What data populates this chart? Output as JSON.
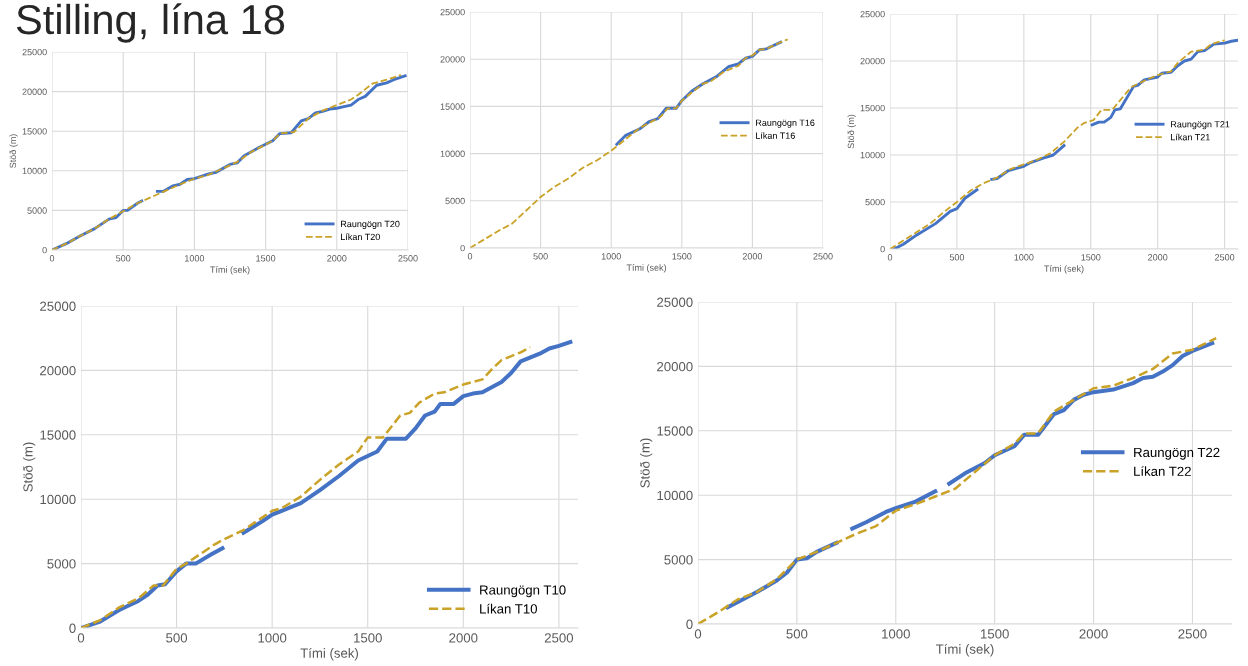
{
  "chart_data": [
    {
      "type": "line",
      "title": "Stilling, lína 18",
      "xlabel": "Tími (sek)",
      "ylabel": "Stöð (m)",
      "xlim": [
        0,
        2500
      ],
      "xticks": [
        0,
        500,
        1000,
        1500,
        2000,
        2500
      ],
      "ylim": [
        0,
        25000
      ],
      "yticks": [
        0,
        5000,
        10000,
        15000,
        20000,
        25000
      ],
      "grid": true,
      "legend": "bottom right",
      "series": [
        {
          "name": "Raungögn T20",
          "color": "#4472c4",
          "line_style": "solid",
          "x": [
            0,
            100,
            200,
            300,
            400,
            450,
            500,
            530,
            600,
            630,
            680,
            740,
            780,
            850,
            900,
            950,
            1000,
            1100,
            1150,
            1250,
            1300,
            1350,
            1450,
            1550,
            1600,
            1680,
            1750,
            1800,
            1850,
            1900,
            1950,
            2000,
            2050,
            2100,
            2150,
            2200,
            2280,
            2350,
            2400,
            2480
          ],
          "values": [
            0,
            800,
            1800,
            2700,
            3900,
            4100,
            5000,
            5000,
            5900,
            6200,
            null,
            7400,
            7400,
            8100,
            8300,
            8900,
            9000,
            9600,
            9800,
            10800,
            11000,
            11900,
            12900,
            13800,
            14700,
            14800,
            16300,
            16600,
            17300,
            17500,
            17800,
            17900,
            18100,
            18300,
            19000,
            19400,
            20800,
            21100,
            21500,
            22000
          ]
        },
        {
          "name": "Líkan T20",
          "color": "#c9a227",
          "line_style": "dashed",
          "x": [
            0,
            100,
            200,
            300,
            400,
            500,
            600,
            700,
            800,
            900,
            1000,
            1100,
            1200,
            1300,
            1400,
            1500,
            1550,
            1600,
            1700,
            1800,
            1900,
            2000,
            2100,
            2150,
            2250,
            2350,
            2450
          ],
          "values": [
            0,
            800,
            1800,
            2700,
            3900,
            4900,
            5900,
            6700,
            7500,
            8300,
            9000,
            9500,
            10300,
            11100,
            12400,
            13300,
            13800,
            14700,
            14900,
            16600,
            17600,
            18300,
            19000,
            19600,
            21000,
            21500,
            22100
          ]
        }
      ]
    },
    {
      "type": "line",
      "xlabel": "Tími (sek)",
      "xlim": [
        0,
        2500
      ],
      "xticks": [
        0,
        500,
        1000,
        1500,
        2000,
        2500
      ],
      "ylim": [
        0,
        25000
      ],
      "yticks": [
        0,
        5000,
        10000,
        15000,
        20000,
        25000
      ],
      "grid": true,
      "legend": "right",
      "series": [
        {
          "name": "Raungögn T16",
          "color": "#4472c4",
          "line_style": "solid",
          "x": [
            1040,
            1100,
            1200,
            1270,
            1330,
            1390,
            1460,
            1500,
            1570,
            1650,
            1750,
            1830,
            1900,
            1950,
            2000,
            2050,
            2100,
            2200
          ],
          "values": [
            11000,
            11900,
            12600,
            13400,
            13700,
            14800,
            14800,
            15600,
            16600,
            17400,
            18200,
            19200,
            19500,
            20100,
            20300,
            21000,
            21100,
            21800
          ]
        },
        {
          "name": "Líkan T16",
          "color": "#c9a227",
          "line_style": "dashed",
          "x": [
            0,
            100,
            200,
            300,
            400,
            500,
            600,
            700,
            800,
            900,
            1000,
            1100,
            1200,
            1300,
            1350,
            1400,
            1460,
            1500,
            1580,
            1650,
            1700,
            1800,
            1900,
            1950,
            2000,
            2050,
            2100,
            2200,
            2250
          ],
          "values": [
            0,
            900,
            1800,
            2600,
            4000,
            5400,
            6500,
            7400,
            8500,
            9300,
            10300,
            11500,
            12700,
            13500,
            13900,
            14800,
            14800,
            15600,
            16600,
            17400,
            17600,
            18700,
            19300,
            20100,
            20400,
            21000,
            21100,
            21800,
            22100
          ]
        }
      ]
    },
    {
      "type": "line",
      "xlabel": "Tími (sek)",
      "ylabel": "Stöð (m)",
      "xlim": [
        0,
        2600
      ],
      "xticks": [
        0,
        500,
        1000,
        1500,
        2000,
        2500
      ],
      "ylim": [
        0,
        25000
      ],
      "yticks": [
        0,
        5000,
        10000,
        15000,
        20000,
        25000
      ],
      "grid": true,
      "legend": "right",
      "series": [
        {
          "name": "Raungögn T21",
          "color": "#4472c4",
          "line_style": "solid",
          "x": [
            30,
            100,
            200,
            340,
            450,
            500,
            560,
            650,
            700,
            760,
            800,
            880,
            950,
            1000,
            1050,
            1150,
            1220,
            1300,
            1400,
            1510,
            1560,
            1600,
            1650,
            1680,
            1720,
            1820,
            1850,
            1900,
            2000,
            2030,
            2100,
            2150,
            2200,
            2250,
            2300,
            2350,
            2420,
            2500,
            2550,
            2600
          ],
          "values": [
            0,
            500,
            1500,
            2700,
            4000,
            4300,
            5400,
            6300,
            null,
            7400,
            7500,
            8300,
            8600,
            8800,
            9200,
            9700,
            10000,
            11000,
            null,
            13200,
            13500,
            13500,
            14000,
            14800,
            14900,
            17300,
            17400,
            18000,
            18300,
            18700,
            18800,
            19500,
            20000,
            20200,
            21000,
            21100,
            21800,
            21900,
            22100,
            22200
          ]
        },
        {
          "name": "Líkan T21",
          "color": "#c9a227",
          "line_style": "dashed",
          "x": [
            0,
            100,
            200,
            300,
            400,
            500,
            600,
            700,
            800,
            900,
            1000,
            1100,
            1200,
            1300,
            1400,
            1450,
            1520,
            1580,
            1660,
            1800,
            1900,
            2000,
            2100,
            2150,
            2250,
            2350,
            2400,
            2500
          ],
          "values": [
            0,
            900,
            1800,
            2700,
            3900,
            5000,
            6200,
            7000,
            7600,
            8500,
            9000,
            9500,
            10200,
            11400,
            12900,
            13400,
            13700,
            14800,
            14800,
            17200,
            17900,
            18500,
            18900,
            19800,
            21000,
            21200,
            21800,
            22200
          ]
        }
      ]
    },
    {
      "type": "line",
      "xlabel": "Tími (sek)",
      "ylabel": "Stöð (m)",
      "xlim": [
        0,
        2600
      ],
      "xticks": [
        0,
        500,
        1000,
        1500,
        2000,
        2500
      ],
      "ylim": [
        0,
        25000
      ],
      "yticks": [
        0,
        5000,
        10000,
        15000,
        20000,
        25000
      ],
      "grid": true,
      "legend": "bottom right",
      "series": [
        {
          "name": "Raungögn T10",
          "color": "#4472c4",
          "line_style": "solid",
          "x": [
            0,
            100,
            200,
            300,
            350,
            400,
            440,
            500,
            550,
            600,
            680,
            740,
            800,
            850,
            950,
            1000,
            1050,
            1150,
            1250,
            1350,
            1450,
            1550,
            1600,
            1700,
            1750,
            1800,
            1850,
            1880,
            1950,
            2000,
            2050,
            2100,
            2200,
            2250,
            2300,
            2400,
            2450,
            2500,
            2560
          ],
          "values": [
            0,
            500,
            1400,
            2100,
            2600,
            3300,
            3400,
            4400,
            5000,
            5000,
            5700,
            6200,
            null,
            7400,
            8300,
            8800,
            9100,
            9700,
            10700,
            11800,
            13000,
            13700,
            14700,
            14700,
            15500,
            16500,
            16800,
            17400,
            17400,
            18000,
            18200,
            18300,
            19100,
            19800,
            20700,
            21300,
            21700,
            21900,
            22200
          ]
        },
        {
          "name": "Líkan T10",
          "color": "#c9a227",
          "line_style": "dashed",
          "x": [
            0,
            100,
            200,
            300,
            380,
            430,
            500,
            550,
            600,
            700,
            750,
            850,
            1000,
            1050,
            1150,
            1250,
            1350,
            1450,
            1500,
            1580,
            1670,
            1720,
            1770,
            1850,
            1900,
            2000,
            2100,
            2150,
            2200,
            2300,
            2350
          ],
          "values": [
            0,
            600,
            1600,
            2300,
            3300,
            3300,
            4600,
            5000,
            5500,
            6500,
            6900,
            7600,
            9100,
            9300,
            10200,
            11500,
            12700,
            13700,
            14800,
            14800,
            16500,
            16700,
            17500,
            18200,
            18300,
            18900,
            19300,
            20100,
            20800,
            21400,
            21800
          ]
        }
      ]
    },
    {
      "type": "line",
      "xlabel": "Tími (sek)",
      "ylabel": "Stöð (m)",
      "xlim": [
        0,
        2700
      ],
      "xticks": [
        0,
        500,
        1000,
        1500,
        2000,
        2500
      ],
      "ylim": [
        0,
        25000
      ],
      "yticks": [
        0,
        5000,
        10000,
        15000,
        20000,
        25000
      ],
      "grid": true,
      "legend": "right",
      "series": [
        {
          "name": "Raungögn T22",
          "color": "#4472c4",
          "line_style": "solid",
          "x": [
            150,
            250,
            300,
            400,
            450,
            500,
            550,
            600,
            700,
            720,
            780,
            850,
            950,
            1000,
            1100,
            1200,
            1230,
            1270,
            1350,
            1450,
            1500,
            1600,
            1650,
            1720,
            1800,
            1850,
            1900,
            1950,
            2000,
            2100,
            2200,
            2250,
            2300,
            2350,
            2400,
            2450,
            2500,
            2600
          ],
          "values": [
            1300,
            2100,
            2500,
            3400,
            4000,
            5000,
            5100,
            5600,
            6300,
            null,
            7400,
            7900,
            8700,
            9000,
            9500,
            10300,
            null,
            10900,
            11700,
            12500,
            13100,
            13800,
            14700,
            14700,
            16300,
            16600,
            17400,
            17800,
            18000,
            18200,
            18700,
            19100,
            19200,
            19600,
            20100,
            20800,
            21200,
            21800
          ]
        },
        {
          "name": "Líkan T22",
          "color": "#c9a227",
          "line_style": "dashed",
          "x": [
            0,
            100,
            200,
            300,
            400,
            500,
            600,
            700,
            800,
            900,
            1000,
            1100,
            1200,
            1300,
            1400,
            1500,
            1600,
            1650,
            1720,
            1800,
            1900,
            2000,
            2100,
            2200,
            2300,
            2400,
            2500,
            2620
          ],
          "values": [
            0,
            900,
            1900,
            2500,
            3500,
            5000,
            5600,
            6300,
            7000,
            7600,
            8800,
            9300,
            9900,
            10500,
            11800,
            13100,
            14000,
            14800,
            14800,
            16500,
            17400,
            18300,
            18500,
            19100,
            19800,
            21000,
            21300,
            22200
          ]
        }
      ]
    }
  ]
}
